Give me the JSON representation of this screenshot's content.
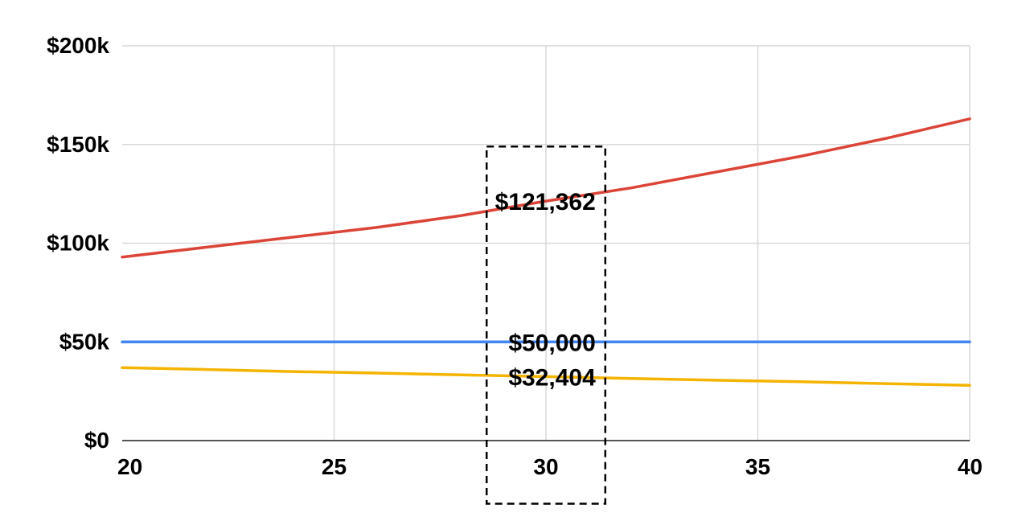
{
  "chart_data": {
    "type": "line",
    "title": "",
    "xlabel": "",
    "ylabel": "",
    "xlim": [
      20,
      40
    ],
    "ylim": [
      0,
      200000
    ],
    "grid": true,
    "legend": "none",
    "x_ticks": [
      {
        "value": 20,
        "label": "20"
      },
      {
        "value": 25,
        "label": "25"
      },
      {
        "value": 30,
        "label": "30"
      },
      {
        "value": 35,
        "label": "35"
      },
      {
        "value": 40,
        "label": "40"
      }
    ],
    "y_ticks": [
      {
        "value": 0,
        "label": "$0"
      },
      {
        "value": 50000,
        "label": "$50k"
      },
      {
        "value": 100000,
        "label": "$100k"
      },
      {
        "value": 150000,
        "label": "$150k"
      },
      {
        "value": 200000,
        "label": "$200k"
      }
    ],
    "x": [
      20,
      22,
      24,
      26,
      28,
      30,
      32,
      34,
      36,
      38,
      40
    ],
    "series": [
      {
        "color": "#db4437",
        "values": [
          93000,
          98000,
          103000,
          108000,
          114000,
          121362,
          128000,
          136000,
          144000,
          153000,
          163000
        ]
      },
      {
        "color": "#4285f4",
        "values": [
          50000,
          50000,
          50000,
          50000,
          50000,
          50000,
          50000,
          50000,
          50000,
          50000,
          50000
        ]
      },
      {
        "color": "#f4b400",
        "values": [
          37000,
          36000,
          35000,
          34200,
          33300,
          32404,
          31500,
          30600,
          29800,
          28900,
          28000
        ]
      }
    ],
    "highlight": {
      "x_range": [
        28.6,
        31.4
      ],
      "y_range": [
        -32000,
        149000
      ]
    },
    "annotations": [
      {
        "label": "$121,362",
        "x": 30,
        "y": 121362
      },
      {
        "label": "$50,000",
        "x": 30,
        "y": 50000
      },
      {
        "label": "$32,404",
        "x": 30,
        "y": 32404
      }
    ]
  }
}
